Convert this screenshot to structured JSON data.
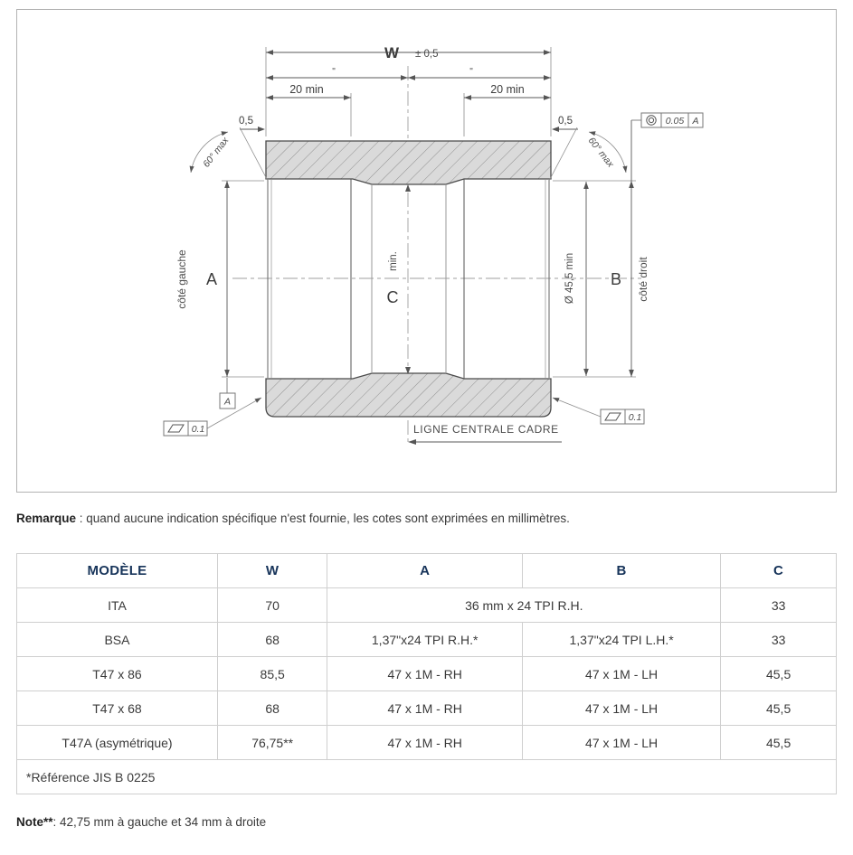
{
  "drawing": {
    "dims": {
      "w_label": "W",
      "w_tol": "± 0,5",
      "half_mark": "\"",
      "min20": "20 min",
      "chamfer": "0,5",
      "angle": "60° max",
      "label_a": "A",
      "label_b": "B",
      "label_c": "C",
      "c_min": "min.",
      "bore_dia": "Ø 45,5 min",
      "side_left": "côté gauche",
      "side_right": "côté droit",
      "centerline_note": "LIGNE CENTRALE CADRE",
      "datum_a": "A",
      "conc_tol": "0.05",
      "conc_datum": "A",
      "flat_tol": "0.1"
    }
  },
  "remark": {
    "label": "Remarque",
    "text": " : quand aucune indication spécifique n'est fournie, les cotes sont exprimées en millimètres."
  },
  "table": {
    "headers": [
      "MODÈLE",
      "W",
      "A",
      "B",
      "C"
    ],
    "rows": [
      {
        "model": "ITA",
        "w": "70",
        "ab": "36 mm x 24 TPI R.H.",
        "c": "33"
      },
      {
        "model": "BSA",
        "w": "68",
        "a": "1,37\"x24 TPI R.H.*",
        "b": "1,37\"x24 TPI L.H.*",
        "c": "33"
      },
      {
        "model": "T47 x 86",
        "w": "85,5",
        "a": "47 x 1M - RH",
        "b": "47 x 1M - LH",
        "c": "45,5"
      },
      {
        "model": "T47 x 68",
        "w": "68",
        "a": "47 x 1M - RH",
        "b": "47 x 1M - LH",
        "c": "45,5"
      },
      {
        "model": "T47A (asymétrique)",
        "w": "76,75**",
        "a": "47 x 1M - RH",
        "b": "47 x 1M - LH",
        "c": "45,5"
      }
    ],
    "footer": "*Référence  JIS B 0225"
  },
  "note": {
    "label": "Note**",
    "text": ": 42,75 mm à gauche et 34 mm à droite"
  },
  "colors": {
    "header_text": "#17345a",
    "table_border": "#cfcfcf",
    "hatch_fill": "#dadada",
    "hatch_line": "#909090",
    "object_line": "#4a4a4a",
    "dim_line": "#6a6a6a"
  }
}
